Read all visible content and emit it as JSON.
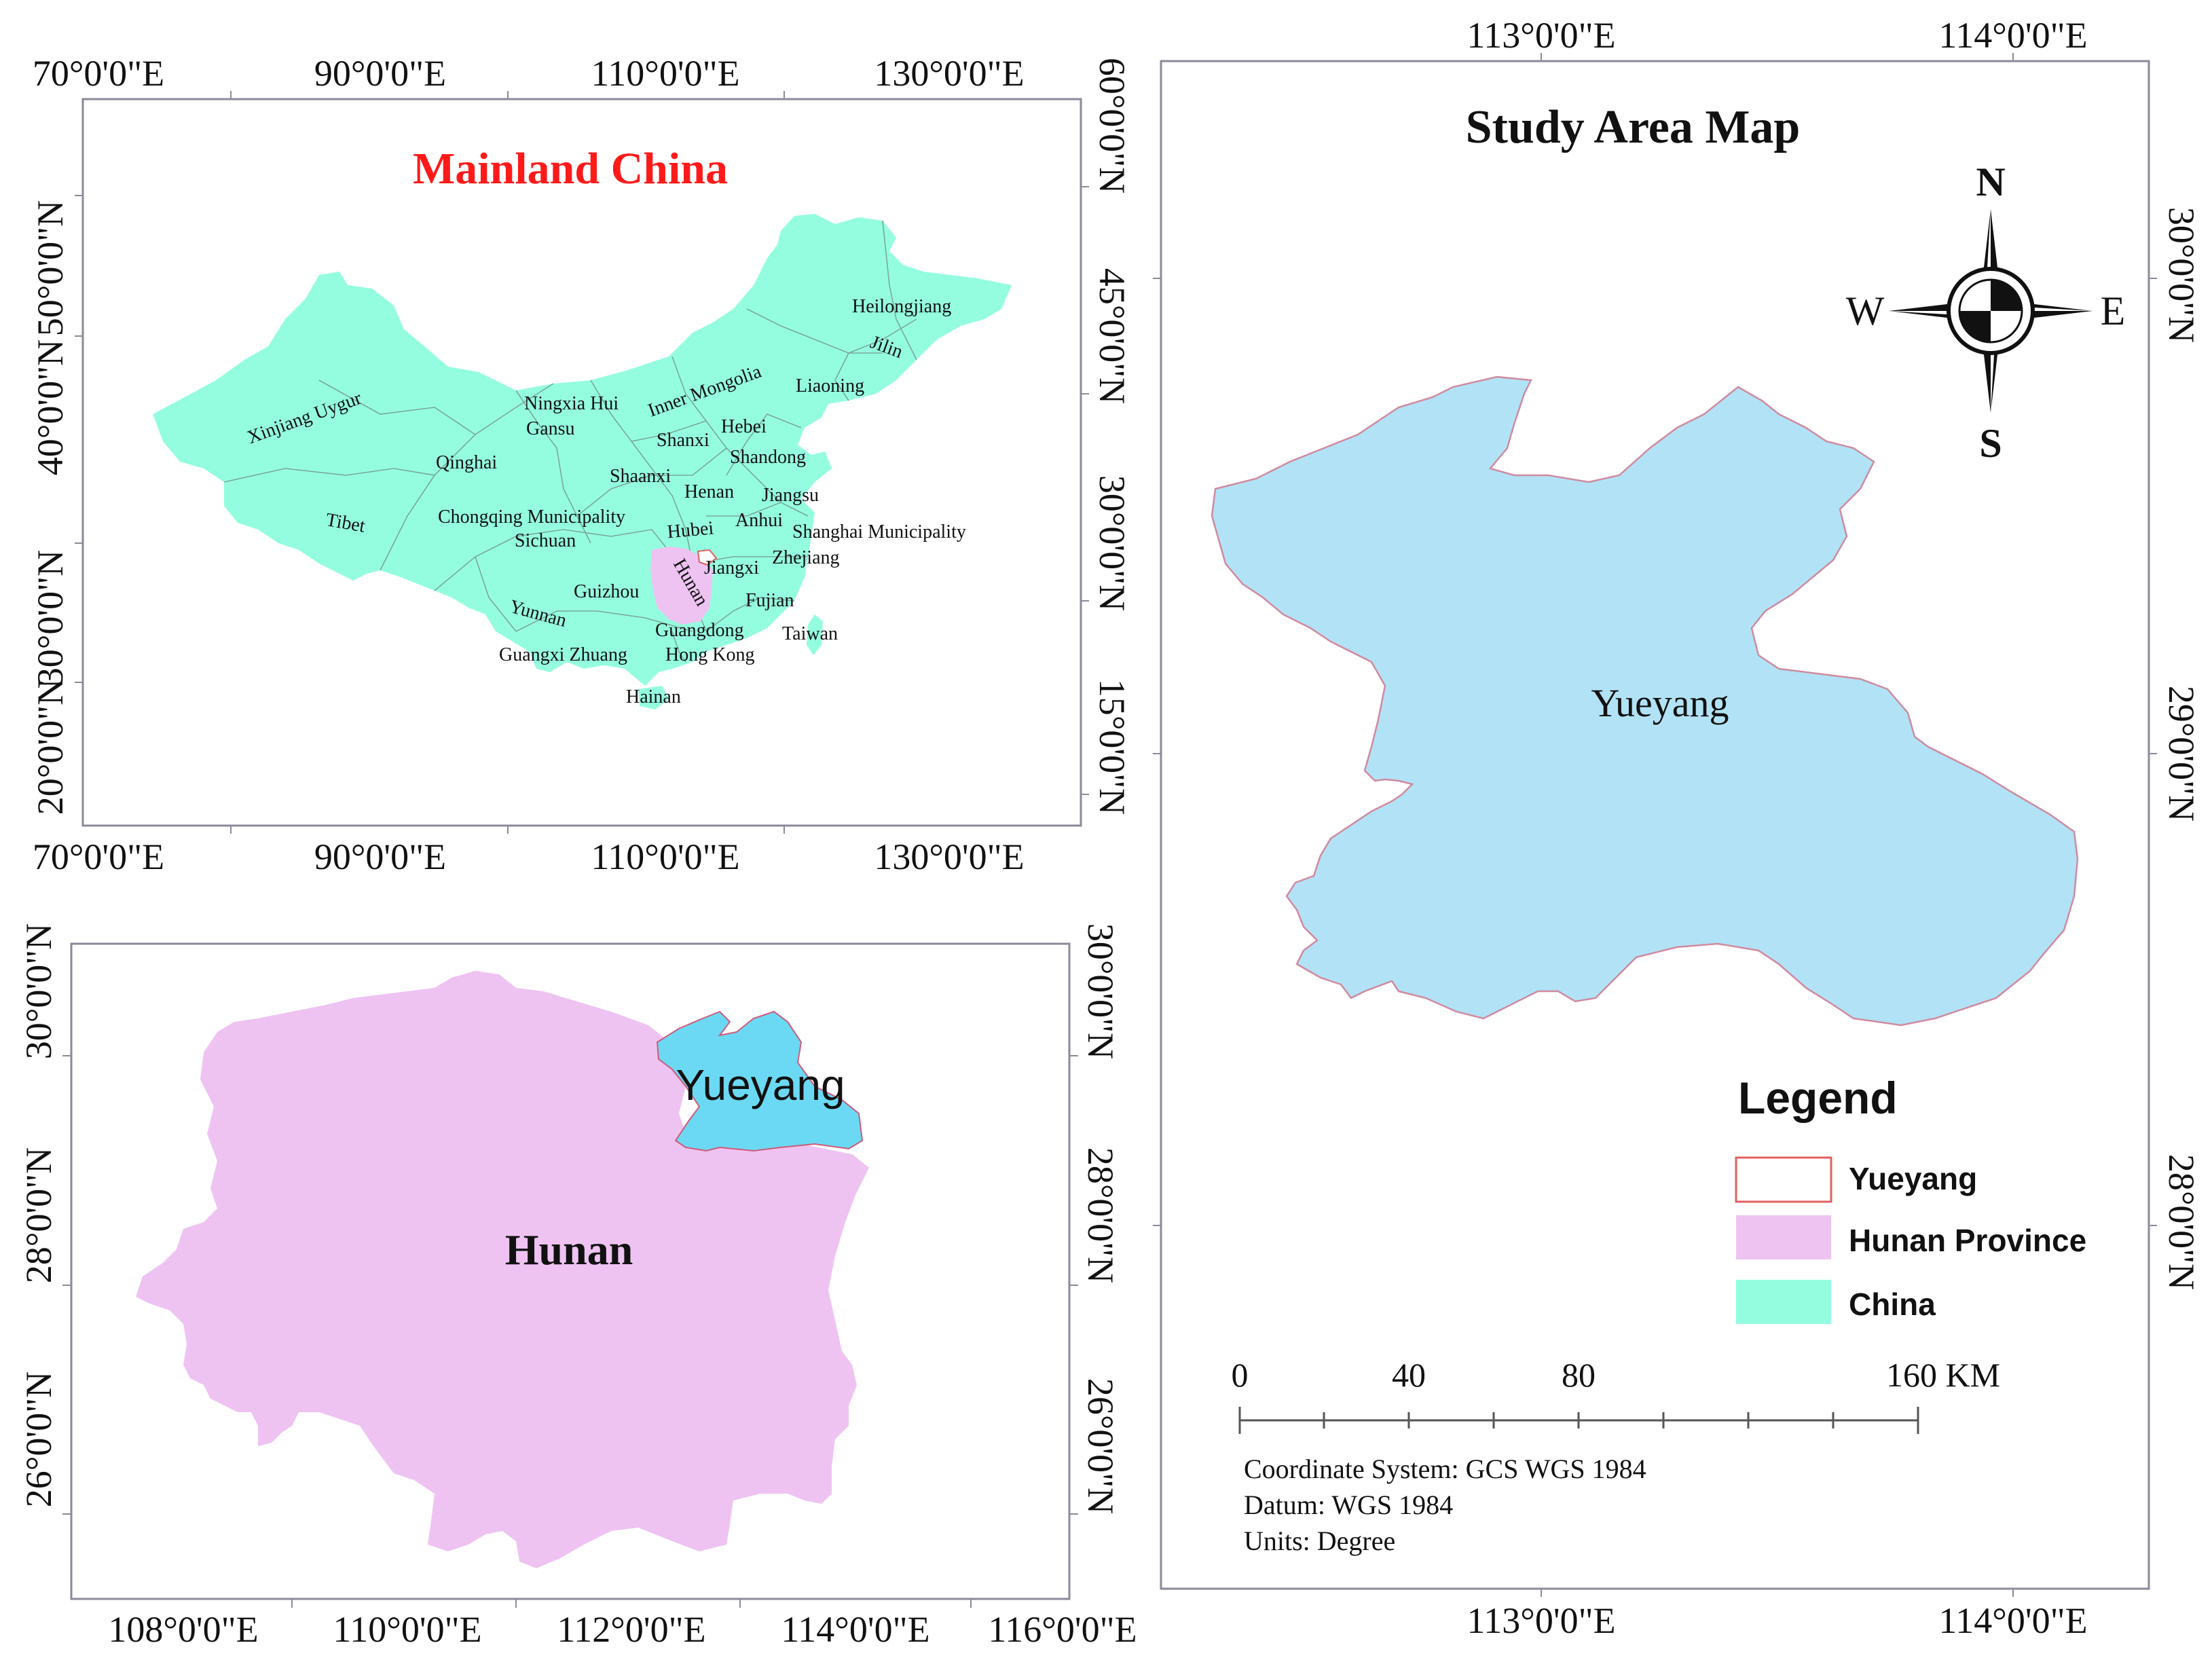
{
  "panels": {
    "china": {
      "title": "Mainland China",
      "title_color": "#ff1a1a",
      "fill_color": "#94fde0",
      "hunan_fill": "#eec3f2",
      "top_ticks": [
        "70°0'0\"E",
        "90°0'0\"E",
        "110°0'0\"E",
        "130°0'0\"E"
      ],
      "bottom_ticks": [
        "70°0'0\"E",
        "90°0'0\"E",
        "110°0'0\"E",
        "130°0'0\"E"
      ],
      "left_ticks": [
        "50°0'0\"N",
        "40°0'0\"N",
        "30°0'0\"N",
        "20°0'0\"N"
      ],
      "right_ticks": [
        "60°0'0\"N",
        "45°0'0\"N",
        "30°0'0\"N",
        "15°0'0\"N"
      ],
      "province_labels": [
        {
          "id": "heilongjiang",
          "text": "Heilongjiang"
        },
        {
          "id": "jilin",
          "text": "Jilin"
        },
        {
          "id": "liaoning",
          "text": "Liaoning"
        },
        {
          "id": "inner-mongolia",
          "text": "Inner Mongolia"
        },
        {
          "id": "xinjiang",
          "text": "Xinjiang Uygur"
        },
        {
          "id": "ningxia",
          "text": "Ningxia Hui"
        },
        {
          "id": "gansu",
          "text": "Gansu"
        },
        {
          "id": "hebei",
          "text": "Hebei"
        },
        {
          "id": "shanxi",
          "text": "Shanxi"
        },
        {
          "id": "shandong",
          "text": "Shandong"
        },
        {
          "id": "qinghai",
          "text": "Qinghai"
        },
        {
          "id": "shaanxi",
          "text": "Shaanxi"
        },
        {
          "id": "henan",
          "text": "Henan"
        },
        {
          "id": "jiangsu",
          "text": "Jiangsu"
        },
        {
          "id": "tibet",
          "text": "Tibet"
        },
        {
          "id": "chongqing",
          "text": "Chongqing Municipality"
        },
        {
          "id": "anhui",
          "text": "Anhui"
        },
        {
          "id": "shanghai",
          "text": "Shanghai Municipality"
        },
        {
          "id": "sichuan",
          "text": "Sichuan"
        },
        {
          "id": "hubei",
          "text": "Hubei"
        },
        {
          "id": "jiangxi",
          "text": "Jiangxi"
        },
        {
          "id": "zhejiang",
          "text": "Zhejiang"
        },
        {
          "id": "hunan",
          "text": "Hunan"
        },
        {
          "id": "guizhou",
          "text": "Guizhou"
        },
        {
          "id": "fujian",
          "text": "Fujian"
        },
        {
          "id": "yunnan",
          "text": "Yunnan"
        },
        {
          "id": "guangdong",
          "text": "Guangdong"
        },
        {
          "id": "taiwan",
          "text": "Taiwan"
        },
        {
          "id": "guangxi",
          "text": "Guangxi Zhuang"
        },
        {
          "id": "hongkong",
          "text": "Hong Kong"
        },
        {
          "id": "hainan",
          "text": "Hainan"
        }
      ]
    },
    "hunan": {
      "hunan_label": "Hunan",
      "yueyang_label": "Yueyang",
      "hunan_fill": "#eec3f2",
      "yueyang_fill": "#6bd9f3",
      "bottom_ticks": [
        "108°0'0\"E",
        "110°0'0\"E",
        "112°0'0\"E",
        "114°0'0\"E",
        "116°0'0\"E"
      ],
      "left_ticks": [
        "30°0'0\"N",
        "28°0'0\"N",
        "26°0'0\"N"
      ],
      "right_ticks": [
        "30°0'0\"N",
        "28°0'0\"N",
        "26°0'0\"N"
      ]
    },
    "study": {
      "title": "Study Area Map",
      "yueyang_label": "Yueyang",
      "yueyang_fill": "#b2e2f5",
      "top_ticks": [
        "113°0'0\"E",
        "114°0'0\"E"
      ],
      "bottom_ticks": [
        "113°0'0\"E",
        "114°0'0\"E"
      ],
      "right_ticks": [
        "30°0'0\"N",
        "29°0'0\"N",
        "28°0'0\"N"
      ],
      "north_arrow": {
        "n": "N",
        "s": "S",
        "e": "E",
        "w": "W"
      },
      "legend": {
        "title": "Legend",
        "items": [
          {
            "label": "Yueyang",
            "fill": "#ffffff",
            "stroke": "#e06060"
          },
          {
            "label": "Hunan Province",
            "fill": "#eec3f2",
            "stroke": "#eec3f2"
          },
          {
            "label": "China",
            "fill": "#94fde0",
            "stroke": "#94fde0"
          }
        ]
      },
      "scale_bar": {
        "labels": [
          "0",
          "40",
          "80",
          "160 KM"
        ]
      },
      "info": [
        "Coordinate System: GCS WGS 1984",
        "Datum: WGS 1984",
        "Units: Degree"
      ]
    }
  }
}
